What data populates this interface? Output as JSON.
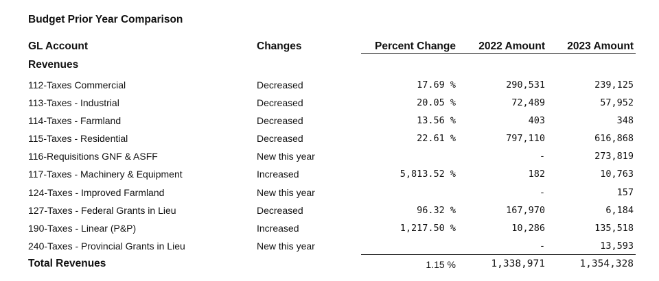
{
  "title": "Budget Prior Year Comparison",
  "headers": {
    "gl_account": "GL Account",
    "changes": "Changes",
    "percent_change": "Percent Change",
    "amount_2022": "2022 Amount",
    "amount_2023": "2023 Amount"
  },
  "section": "Revenues",
  "rows": [
    {
      "gl": "112-Taxes Commercial",
      "change": "Decreased",
      "pct": "17.69 %",
      "a2022": "290,531",
      "a2023": "239,125"
    },
    {
      "gl": "113-Taxes - Industrial",
      "change": "Decreased",
      "pct": "20.05 %",
      "a2022": "72,489",
      "a2023": "57,952"
    },
    {
      "gl": "114-Taxes - Farmland",
      "change": "Decreased",
      "pct": "13.56 %",
      "a2022": "403",
      "a2023": "348"
    },
    {
      "gl": "115-Taxes - Residential",
      "change": "Decreased",
      "pct": "22.61 %",
      "a2022": "797,110",
      "a2023": "616,868"
    },
    {
      "gl": "116-Requisitions GNF & ASFF",
      "change": "New this year",
      "pct": "",
      "a2022": "-",
      "a2023": "273,819"
    },
    {
      "gl": "117-Taxes - Machinery & Equipment",
      "change": "Increased",
      "pct": "5,813.52 %",
      "a2022": "182",
      "a2023": "10,763"
    },
    {
      "gl": "124-Taxes - Improved Farmland",
      "change": "New this year",
      "pct": "",
      "a2022": "-",
      "a2023": "157"
    },
    {
      "gl": "127-Taxes - Federal Grants in Lieu",
      "change": "Decreased",
      "pct": "96.32 %",
      "a2022": "167,970",
      "a2023": "6,184"
    },
    {
      "gl": "190-Taxes - Linear (P&P)",
      "change": "Increased",
      "pct": "1,217.50 %",
      "a2022": "10,286",
      "a2023": "135,518"
    },
    {
      "gl": "240-Taxes - Provincial Grants in Lieu",
      "change": "New this year",
      "pct": "",
      "a2022": "-",
      "a2023": "13,593"
    }
  ],
  "total": {
    "label": "Total Revenues",
    "pct": "1.15 %",
    "a2022": "1,338,971",
    "a2023": "1,354,328"
  }
}
